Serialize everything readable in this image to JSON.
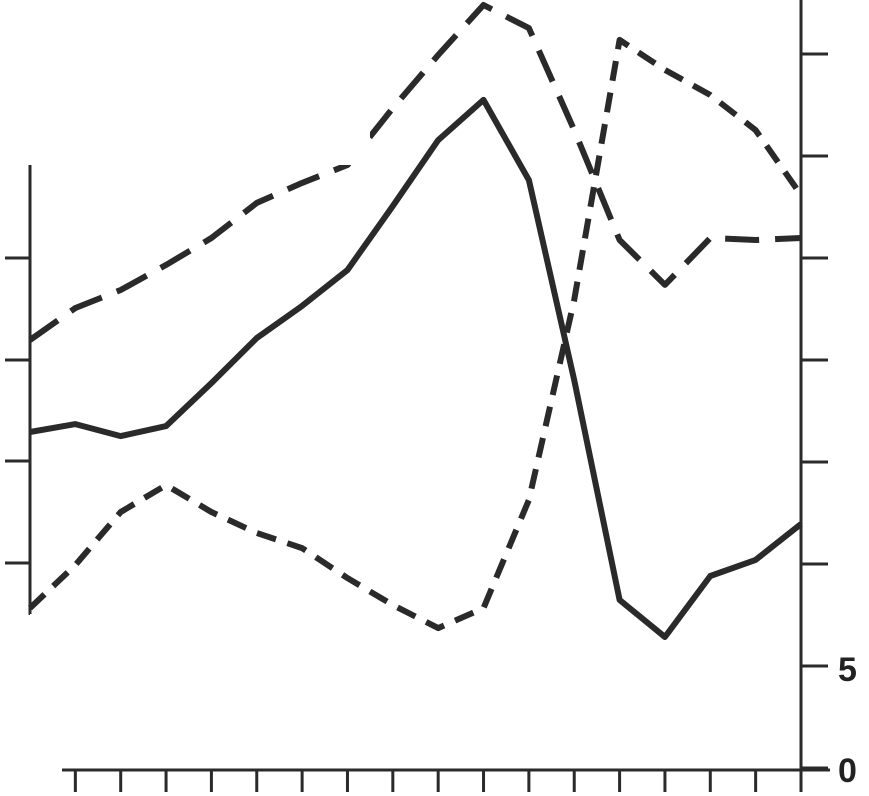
{
  "chart_data": {
    "type": "line",
    "title": "",
    "xlabel": "",
    "ylabel": "",
    "x": [
      0,
      1,
      2,
      3,
      4,
      5,
      6,
      7,
      8,
      9,
      10,
      11,
      12,
      13,
      14,
      15,
      16,
      17
    ],
    "ylim": [
      0,
      350
    ],
    "right_axis_tick_labels": [
      "0",
      "5"
    ],
    "grid": false,
    "line_color": "#2a2a2a",
    "series": [
      {
        "style": "solid",
        "values": [
          164.7,
          168.6,
          162.7,
          167.6,
          188.7,
          210.8,
          226.5,
          244.1,
          275.5,
          307.8,
          327.5,
          288.2,
          190.2,
          82.4,
          64.2,
          94.1,
          102,
          119.6
        ]
      },
      {
        "style": "long-dash",
        "values": [
          209.8,
          225.5,
          234.3,
          246.6,
          259.8,
          277,
          286.8,
          295.6,
          323.5,
          349.5,
          374,
          362.7,
          312.7,
          258.8,
          236.8,
          259.8,
          258.8,
          259.8
        ]
      },
      {
        "style": "short-dash",
        "values": [
          78.4,
          99.5,
          125.5,
          138.7,
          125.5,
          115.2,
          107.8,
          93.1,
          79.9,
          68.6,
          78.4,
          131.4,
          229.4,
          356.9,
          342.2,
          329.9,
          312.7,
          280.9
        ]
      }
    ]
  }
}
